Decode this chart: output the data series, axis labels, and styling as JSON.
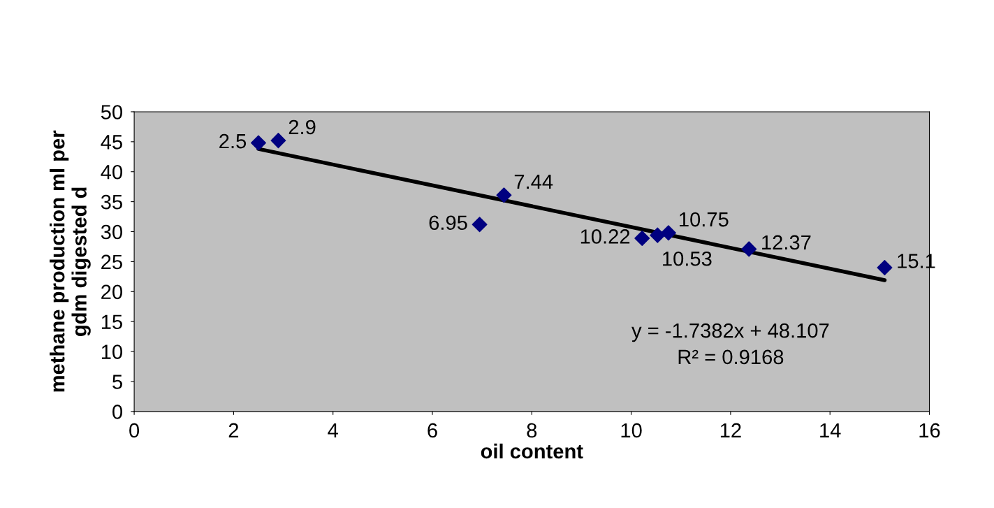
{
  "chart_data": {
    "type": "scatter",
    "xlabel": "oil content",
    "ylabel": "methane production ml per\ngdm digested d",
    "xlim": [
      0,
      16
    ],
    "xticks": [
      0,
      2,
      4,
      6,
      8,
      10,
      12,
      14,
      16
    ],
    "ylim": [
      0,
      50
    ],
    "yticks": [
      0,
      5,
      10,
      15,
      20,
      25,
      30,
      35,
      40,
      45,
      50
    ],
    "grid": false,
    "legend": false,
    "series": [
      {
        "color": "#000080",
        "marker": "diamond",
        "x": [
          2.5,
          2.9,
          6.95,
          7.44,
          10.22,
          10.53,
          10.75,
          12.37,
          15.1
        ],
        "values": [
          44.8,
          45.2,
          31.2,
          36.1,
          28.9,
          29.4,
          29.8,
          27.1,
          24.0
        ]
      },
      {
        "type": "line",
        "color": "#000000",
        "x": [
          2.5,
          15.1
        ],
        "values": [
          43.8,
          21.9
        ]
      }
    ],
    "annotations": [
      {
        "text": "2.5",
        "x": 2.5,
        "y": 44.8
      },
      {
        "text": "2.9",
        "x": 2.9,
        "y": 45.2
      },
      {
        "text": "6.95",
        "x": 6.95,
        "y": 31.2
      },
      {
        "text": "7.44",
        "x": 7.44,
        "y": 36.1
      },
      {
        "text": "10.22",
        "x": 10.22,
        "y": 28.9
      },
      {
        "text": "10.53",
        "x": 10.53,
        "y": 29.4
      },
      {
        "text": "10.75",
        "x": 10.75,
        "y": 29.8
      },
      {
        "text": "12.37",
        "x": 12.37,
        "y": 27.1
      },
      {
        "text": "15.1",
        "x": 15.1,
        "y": 24.0
      },
      "y = -1.7382x + 48.107\nR² = 0.9168"
    ]
  }
}
